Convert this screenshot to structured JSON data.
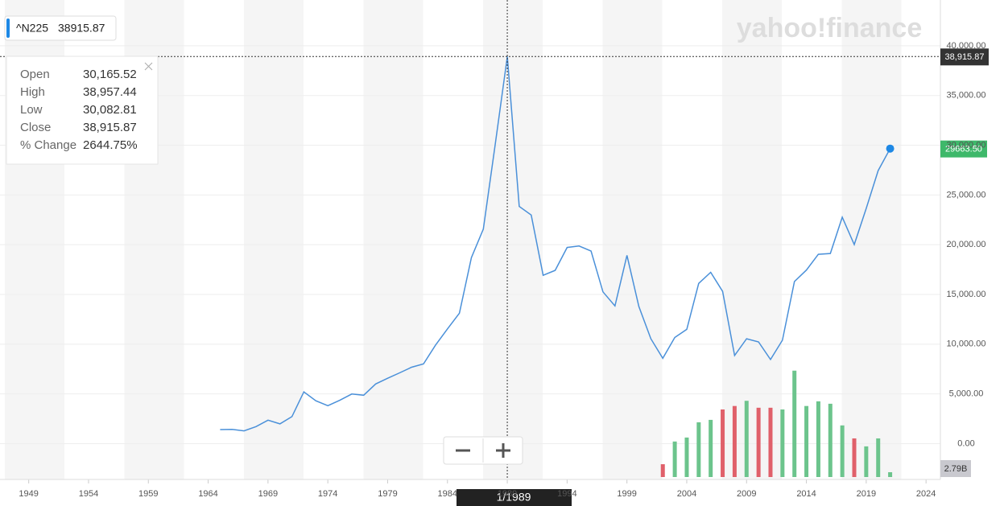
{
  "header": {
    "symbol": "^N225",
    "price": "38915.87"
  },
  "logo": "yahoo!finance",
  "tooltip": {
    "rows": [
      {
        "label": "Open",
        "value": "30,165.52"
      },
      {
        "label": "High",
        "value": "38,957.44"
      },
      {
        "label": "Low",
        "value": "30,082.81"
      },
      {
        "label": "Close",
        "value": "38,915.87"
      },
      {
        "label": "% Change",
        "value": "2644.75%"
      }
    ]
  },
  "crosshair": {
    "x": 1989,
    "x_label": "1/1989",
    "y": 38915.87,
    "y_label": "38,915.87"
  },
  "last_price": {
    "value": 29663.5,
    "label": "29663.50"
  },
  "last_volume": {
    "value": 2.79,
    "label": "2.79B"
  },
  "chart_data": {
    "type": "line",
    "x": [
      1965,
      1966,
      1967,
      1968,
      1969,
      1970,
      1971,
      1972,
      1973,
      1974,
      1975,
      1976,
      1977,
      1978,
      1979,
      1980,
      1981,
      1982,
      1983,
      1984,
      1985,
      1986,
      1987,
      1988,
      1989,
      1990,
      1991,
      1992,
      1993,
      1994,
      1995,
      1996,
      1997,
      1998,
      1999,
      2000,
      2001,
      2002,
      2003,
      2004,
      2005,
      2006,
      2007,
      2008,
      2009,
      2010,
      2011,
      2012,
      2013,
      2014,
      2015,
      2016,
      2017,
      2018,
      2019,
      2020,
      2021
    ],
    "series": [
      {
        "name": "^N225",
        "color": "#4a90d9",
        "values": [
          1417,
          1430,
          1283,
          1715,
          2359,
          1987,
          2714,
          5208,
          4307,
          3817,
          4359,
          4991,
          4866,
          6002,
          6570,
          7116,
          7682,
          8017,
          9894,
          11543,
          13113,
          18701,
          21564,
          30159,
          38915.87,
          23849,
          22984,
          16925,
          17417,
          19723,
          19868,
          19361,
          15259,
          13842,
          18934,
          13786,
          10543,
          8579,
          10677,
          11489,
          16111,
          17226,
          15308,
          8860,
          10546,
          10229,
          8455,
          10395,
          16291,
          17451,
          19034,
          19114,
          22765,
          20015,
          23657,
          27444,
          29663.5
        ]
      }
    ],
    "volume": {
      "x": [
        2002,
        2003,
        2004,
        2005,
        2006,
        2007,
        2008,
        2009,
        2010,
        2011,
        2012,
        2013,
        2014,
        2015,
        2016,
        2017,
        2018,
        2019,
        2020,
        2021
      ],
      "values": [
        7.4,
        20.5,
        22.8,
        31.6,
        33,
        39,
        41,
        44,
        40,
        40,
        39,
        61.4,
        41,
        43.7,
        42.3,
        29.8,
        22.3,
        17.7,
        22.3,
        2.79
      ],
      "colors": [
        "#e0606a",
        "#6cc48c",
        "#6cc48c",
        "#6cc48c",
        "#6cc48c",
        "#e0606a",
        "#e0606a",
        "#6cc48c",
        "#e0606a",
        "#e0606a",
        "#6cc48c",
        "#6cc48c",
        "#6cc48c",
        "#6cc48c",
        "#6cc48c",
        "#6cc48c",
        "#e0606a",
        "#6cc48c",
        "#6cc48c",
        "#6cc48c"
      ],
      "vlim": [
        0,
        65
      ]
    },
    "xlim": [
      1946.6,
      2025.2
    ],
    "xticks": [
      1949,
      1954,
      1959,
      1964,
      1969,
      1974,
      1979,
      1984,
      1989,
      1994,
      1999,
      2004,
      2009,
      2014,
      2019,
      2024
    ],
    "ylim": [
      -3600,
      44600
    ],
    "yticks": [
      {
        "value": 0,
        "label": "0.00"
      },
      {
        "value": 5000,
        "label": "5,000.00"
      },
      {
        "value": 10000,
        "label": "10,000.00"
      },
      {
        "value": 15000,
        "label": "15,000.00"
      },
      {
        "value": 20000,
        "label": "20,000.00"
      },
      {
        "value": 25000,
        "label": "25,000.00"
      },
      {
        "value": 30000,
        "label": "30,000.00"
      },
      {
        "value": 35000,
        "label": "35,000.00"
      },
      {
        "value": 40000,
        "label": "40,000.00"
      }
    ],
    "grid": true
  }
}
